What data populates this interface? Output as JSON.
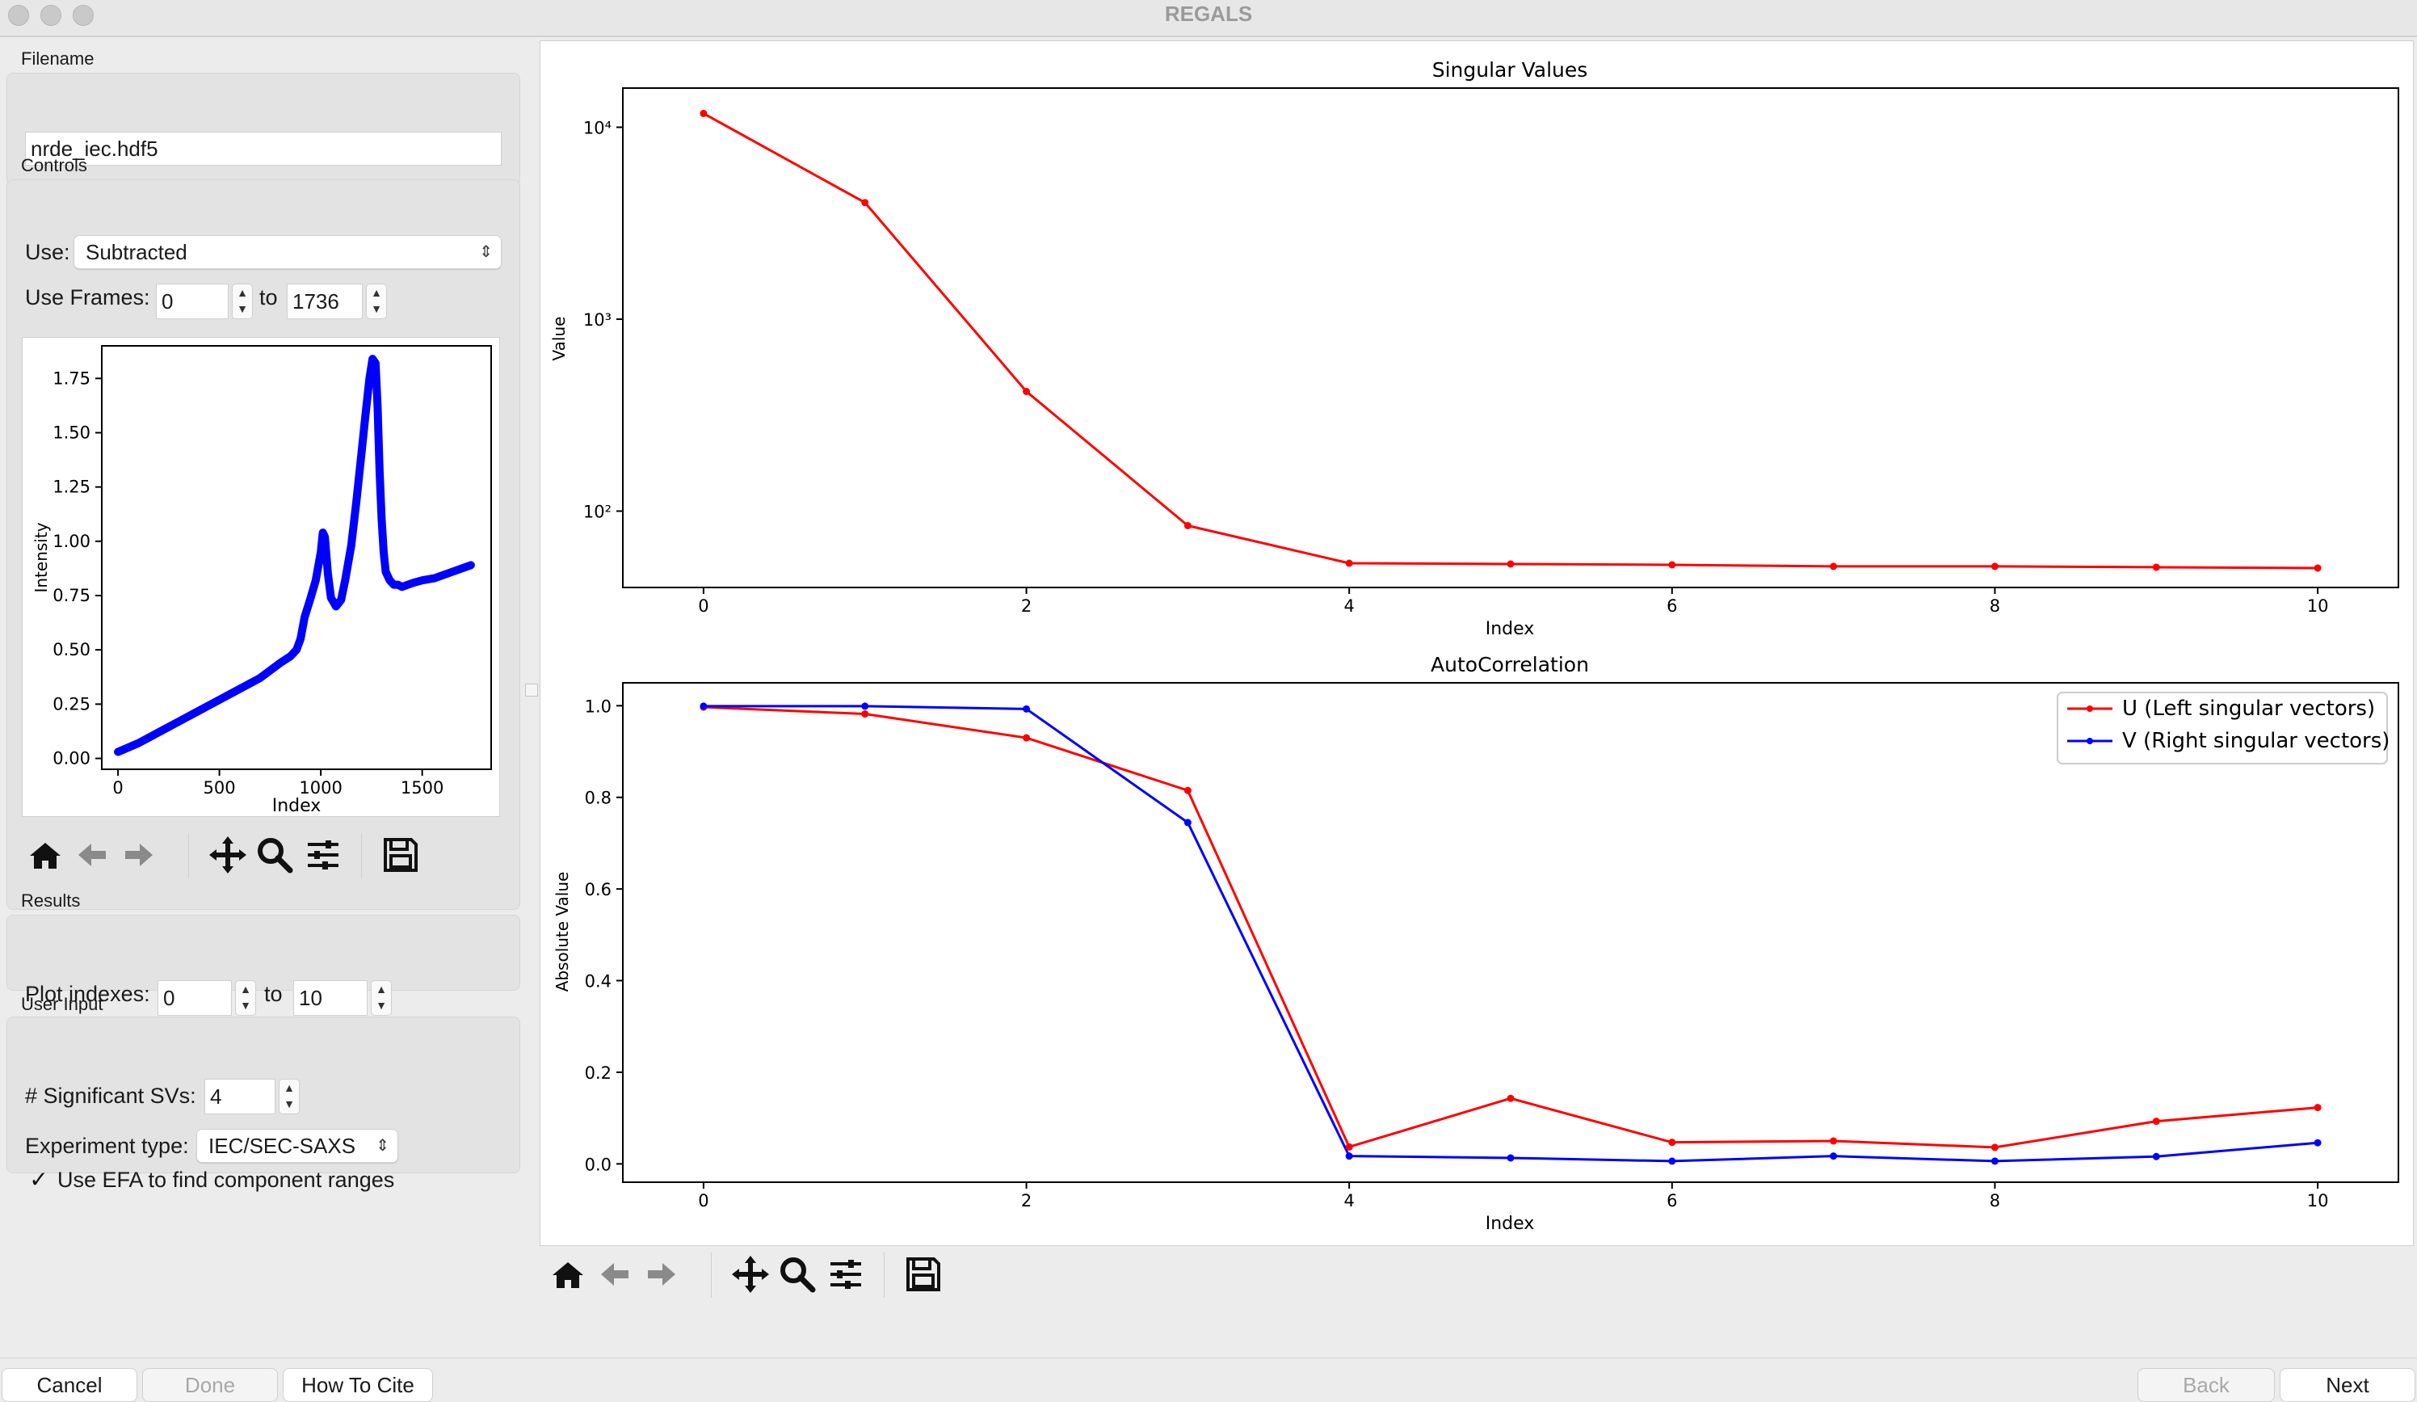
{
  "window": {
    "title": "REGALS"
  },
  "left": {
    "filename_section": "Filename",
    "filename_value": "nrde_iec.hdf5",
    "controls_section": "Controls",
    "use_label": "Use:",
    "use_value": "Subtracted",
    "use_frames_label": "Use Frames:",
    "frames_start": "0",
    "frames_to": "to",
    "frames_end": "1736",
    "profile_plot": {
      "ylabel": "Intensity",
      "xlabel": "Index",
      "xticks": [
        "0",
        "500",
        "1000",
        "1500"
      ],
      "yticks": [
        "0.00",
        "0.25",
        "0.50",
        "0.75",
        "1.00",
        "1.25",
        "1.50",
        "1.75"
      ]
    },
    "results_section": "Results",
    "plot_indexes_label": "Plot indexes:",
    "plot_start": "0",
    "plot_to": "to",
    "plot_end": "10",
    "user_input_section": "User Input",
    "sig_svs_label": "# Significant SVs:",
    "sig_svs_value": "4",
    "exp_type_label": "Experiment type:",
    "exp_type_value": "IEC/SEC-SAXS",
    "use_efa_label": "Use EFA to find component ranges",
    "use_efa_checked": true
  },
  "toolbar_icons": [
    "home-icon",
    "back-arrow-icon",
    "forward-arrow-icon",
    "pan-icon",
    "zoom-icon",
    "configure-icon",
    "save-icon"
  ],
  "buttons": {
    "cancel": "Cancel",
    "done": "Done",
    "how_to_cite": "How To Cite",
    "back": "Back",
    "next": "Next"
  },
  "chart_data": [
    {
      "type": "line",
      "title": "Singular Values",
      "xlabel": "Index",
      "ylabel": "Value",
      "yscale": "log",
      "x": [
        0,
        1,
        2,
        3,
        4,
        5,
        6,
        7,
        8,
        9,
        10
      ],
      "xticks": [
        "0",
        "2",
        "4",
        "6",
        "8",
        "10"
      ],
      "yticks": [
        "10²",
        "10³",
        "10⁴"
      ],
      "series": [
        {
          "values": [
            11800,
            4050,
            420,
            84,
            53.5,
            53,
            52.5,
            51.5,
            51.5,
            51,
            50.5
          ],
          "color": "#ff0000"
        }
      ]
    },
    {
      "type": "line",
      "title": "AutoCorrelation",
      "xlabel": "Index",
      "ylabel": "Absolute Value",
      "x": [
        0,
        1,
        2,
        3,
        4,
        5,
        6,
        7,
        8,
        9,
        10
      ],
      "xticks": [
        "0",
        "2",
        "4",
        "6",
        "8",
        "10"
      ],
      "yticks": [
        "0.0",
        "0.2",
        "0.4",
        "0.6",
        "0.8",
        "1.0"
      ],
      "ylim": [
        -0.04,
        1.05
      ],
      "legend_position": "top-right",
      "series": [
        {
          "name": "U (Left singular vectors)",
          "values": [
            0.997,
            0.982,
            0.93,
            0.815,
            0.037,
            0.143,
            0.047,
            0.05,
            0.036,
            0.093,
            0.123
          ],
          "color": "#ff0000"
        },
        {
          "name": "V (Right singular vectors)",
          "values": [
            0.999,
            0.999,
            0.993,
            0.745,
            0.017,
            0.013,
            0.006,
            0.017,
            0.006,
            0.016,
            0.046
          ],
          "color": "#0000ff"
        }
      ]
    },
    {
      "type": "line",
      "title": "",
      "xlabel": "Index",
      "ylabel": "Intensity",
      "xlim": [
        -80,
        1840
      ],
      "ylim": [
        -0.05,
        1.9
      ],
      "series": [
        {
          "x": [
            0,
            100,
            200,
            300,
            400,
            500,
            600,
            700,
            800,
            850,
            880,
            900,
            920,
            950,
            975,
            1000,
            1010,
            1020,
            1035,
            1050,
            1075,
            1100,
            1120,
            1150,
            1175,
            1200,
            1220,
            1240,
            1255,
            1270,
            1280,
            1290,
            1300,
            1310,
            1320,
            1340,
            1360,
            1380,
            1400,
            1430,
            1460,
            1500,
            1560,
            1620,
            1680,
            1740
          ],
          "values": [
            0.03,
            0.07,
            0.12,
            0.17,
            0.22,
            0.27,
            0.32,
            0.37,
            0.44,
            0.47,
            0.5,
            0.55,
            0.65,
            0.74,
            0.82,
            0.95,
            1.04,
            1.02,
            0.85,
            0.74,
            0.7,
            0.73,
            0.82,
            0.98,
            1.18,
            1.4,
            1.58,
            1.75,
            1.84,
            1.82,
            1.62,
            1.32,
            1.1,
            0.95,
            0.86,
            0.82,
            0.8,
            0.8,
            0.79,
            0.8,
            0.81,
            0.82,
            0.83,
            0.85,
            0.87,
            0.89
          ],
          "color": "#0000ff"
        }
      ]
    }
  ]
}
